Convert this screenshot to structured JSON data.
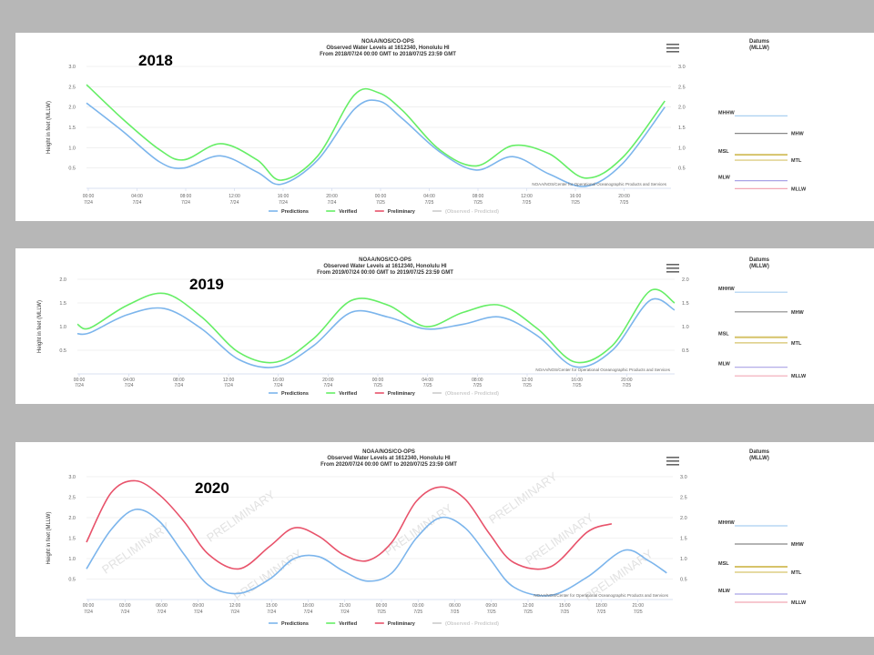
{
  "chart_data": [
    {
      "type": "line",
      "year_label": "2018",
      "title": "NOAA/NOS/CO-OPS",
      "subtitle1": "Observed Water Levels at 1612340, Honolulu HI",
      "subtitle2": "From 2018/07/24 00:00 GMT to 2018/07/25 23:59 GMT",
      "ylabel": "Height in feet (MLLW)",
      "ylim": [
        0,
        3
      ],
      "yticks": [
        "3.0",
        "2.5",
        "2.0",
        "1.5",
        "1.0",
        "0.5"
      ],
      "xlim": [
        0,
        48
      ],
      "x_ticks": [
        {
          "t": "00:00",
          "d": "7/24"
        },
        {
          "t": "04:00",
          "d": "7/24"
        },
        {
          "t": "08:00",
          "d": "7/24"
        },
        {
          "t": "12:00",
          "d": "7/24"
        },
        {
          "t": "16:00",
          "d": "7/24"
        },
        {
          "t": "20:00",
          "d": "7/24"
        },
        {
          "t": "00:00",
          "d": "7/25"
        },
        {
          "t": "04:00",
          "d": "7/25"
        },
        {
          "t": "08:00",
          "d": "7/25"
        },
        {
          "t": "12:00",
          "d": "7/25"
        },
        {
          "t": "16:00",
          "d": "7/25"
        },
        {
          "t": "20:00",
          "d": "7/25"
        }
      ],
      "credit": "NOAA/NOS/Center for Operational Oceanographic Products and Services",
      "series": [
        {
          "name": "Predictions",
          "color": "#7cb5ec",
          "x": [
            0,
            3,
            6,
            8,
            11,
            14,
            16,
            19,
            22,
            24,
            26,
            29,
            32,
            35,
            38,
            41,
            44,
            47.5
          ],
          "values": [
            2.1,
            1.4,
            0.65,
            0.5,
            0.8,
            0.4,
            0.1,
            0.7,
            1.95,
            2.15,
            1.7,
            0.9,
            0.45,
            0.78,
            0.35,
            0.05,
            0.6,
            2.0
          ]
        },
        {
          "name": "Verified",
          "color": "#66ee66",
          "x": [
            0,
            3,
            6,
            8,
            11,
            14,
            16,
            19,
            22,
            24,
            26,
            29,
            32,
            35,
            38,
            41,
            44,
            47.5
          ],
          "values": [
            2.55,
            1.7,
            0.95,
            0.7,
            1.1,
            0.7,
            0.2,
            0.8,
            2.3,
            2.35,
            1.9,
            0.95,
            0.55,
            1.05,
            0.85,
            0.25,
            0.75,
            2.15
          ]
        },
        {
          "name": "Preliminary",
          "color": "#e8536b",
          "x": [],
          "values": []
        },
        {
          "name": "(Observed - Predicted)",
          "color": "#cccccc",
          "x": [],
          "values": []
        }
      ],
      "watermark": ""
    },
    {
      "type": "line",
      "year_label": "2019",
      "title": "NOAA/NOS/CO-OPS",
      "subtitle1": "Observed Water Levels at 1612340, Honolulu HI",
      "subtitle2": "From 2019/07/24 00:00 GMT to 2019/07/25 23:59 GMT",
      "ylabel": "Height in feet (MLLW)",
      "ylim": [
        0,
        2
      ],
      "yticks": [
        "2.0",
        "1.5",
        "1.0",
        "0.5"
      ],
      "xlim": [
        0,
        48
      ],
      "x_ticks": [
        {
          "t": "00:00",
          "d": "7/24"
        },
        {
          "t": "04:00",
          "d": "7/24"
        },
        {
          "t": "08:00",
          "d": "7/24"
        },
        {
          "t": "12:00",
          "d": "7/24"
        },
        {
          "t": "16:00",
          "d": "7/24"
        },
        {
          "t": "20:00",
          "d": "7/24"
        },
        {
          "t": "00:00",
          "d": "7/25"
        },
        {
          "t": "04:00",
          "d": "7/25"
        },
        {
          "t": "08:00",
          "d": "7/25"
        },
        {
          "t": "12:00",
          "d": "7/25"
        },
        {
          "t": "16:00",
          "d": "7/25"
        },
        {
          "t": "20:00",
          "d": "7/25"
        }
      ],
      "credit": "NOAA/NOS/Center for Operational Oceanographic Products and Services",
      "series": [
        {
          "name": "Predictions",
          "color": "#7cb5ec",
          "x": [
            0,
            1,
            4,
            7,
            10,
            13,
            16,
            19,
            22,
            25,
            28,
            31,
            34,
            37,
            40,
            43,
            46,
            48
          ],
          "values": [
            0.85,
            0.87,
            1.25,
            1.38,
            0.95,
            0.3,
            0.15,
            0.6,
            1.3,
            1.2,
            0.95,
            1.05,
            1.2,
            0.8,
            0.15,
            0.5,
            1.55,
            1.35
          ]
        },
        {
          "name": "Verified",
          "color": "#66ee66",
          "x": [
            0,
            1,
            4,
            7,
            10,
            13,
            16,
            19,
            22,
            25,
            28,
            31,
            34,
            37,
            40,
            43,
            46,
            48
          ],
          "values": [
            1.05,
            0.97,
            1.45,
            1.7,
            1.2,
            0.45,
            0.25,
            0.75,
            1.55,
            1.45,
            1.0,
            1.3,
            1.45,
            0.95,
            0.25,
            0.6,
            1.75,
            1.5
          ]
        },
        {
          "name": "Preliminary",
          "color": "#e8536b",
          "x": [],
          "values": []
        },
        {
          "name": "(Observed - Predicted)",
          "color": "#cccccc",
          "x": [],
          "values": []
        }
      ],
      "watermark": ""
    },
    {
      "type": "line",
      "year_label": "2020",
      "title": "NOAA/NOS/CO-OPS",
      "subtitle1": "Observed Water Levels at 1612340, Honolulu HI",
      "subtitle2": "From 2020/07/24 00:00 GMT to 2020/07/25 23:59 GMT",
      "ylabel": "Height in feet (MLLW)",
      "ylim": [
        0,
        3
      ],
      "yticks": [
        "3.0",
        "2.5",
        "2.0",
        "1.5",
        "1.0",
        "0.5"
      ],
      "xlim": [
        0,
        48
      ],
      "x_ticks": [
        {
          "t": "00:00",
          "d": "7/24"
        },
        {
          "t": "03:00",
          "d": "7/24"
        },
        {
          "t": "06:00",
          "d": "7/24"
        },
        {
          "t": "09:00",
          "d": "7/24"
        },
        {
          "t": "12:00",
          "d": "7/24"
        },
        {
          "t": "15:00",
          "d": "7/24"
        },
        {
          "t": "18:00",
          "d": "7/24"
        },
        {
          "t": "21:00",
          "d": "7/24"
        },
        {
          "t": "00:00",
          "d": "7/25"
        },
        {
          "t": "03:00",
          "d": "7/25"
        },
        {
          "t": "06:00",
          "d": "7/25"
        },
        {
          "t": "09:00",
          "d": "7/25"
        },
        {
          "t": "12:00",
          "d": "7/25"
        },
        {
          "t": "15:00",
          "d": "7/25"
        },
        {
          "t": "18:00",
          "d": "7/25"
        },
        {
          "t": "21:00",
          "d": "7/25"
        }
      ],
      "credit": "NOAA/NOS/Center for Operational Oceanographic Products and Services",
      "series": [
        {
          "name": "Predictions",
          "color": "#7cb5ec",
          "x": [
            0,
            2,
            4,
            6,
            8,
            10,
            12.5,
            15,
            17,
            19,
            21,
            23,
            25,
            27,
            29,
            31,
            33,
            35,
            38,
            41,
            44,
            46,
            47.5
          ],
          "values": [
            0.75,
            1.7,
            2.2,
            1.9,
            1.1,
            0.35,
            0.15,
            0.5,
            1.0,
            1.05,
            0.7,
            0.45,
            0.65,
            1.5,
            2.0,
            1.75,
            1.0,
            0.3,
            0.1,
            0.55,
            1.2,
            0.95,
            0.65
          ]
        },
        {
          "name": "Verified",
          "color": "#66ee66",
          "x": [],
          "values": []
        },
        {
          "name": "Preliminary",
          "color": "#e8536b",
          "x": [
            0,
            2,
            4,
            6,
            8,
            10,
            12.5,
            15,
            17,
            19,
            21,
            23,
            25,
            27,
            29,
            31,
            33,
            35,
            38,
            41,
            43
          ],
          "values": [
            1.4,
            2.6,
            2.9,
            2.55,
            1.9,
            1.1,
            0.75,
            1.3,
            1.75,
            1.55,
            1.1,
            0.95,
            1.4,
            2.4,
            2.75,
            2.45,
            1.6,
            0.9,
            0.8,
            1.65,
            1.85
          ]
        },
        {
          "name": "(Observed - Predicted)",
          "color": "#cccccc",
          "x": [],
          "values": []
        }
      ],
      "watermark": "PRELIMINARY"
    }
  ],
  "datums": [
    {
      "title": "Datums",
      "subtitle": "(MLLW)",
      "items": [
        {
          "label": "MHHW",
          "side": "left",
          "color": "#a9cff0",
          "level": 0.12
        },
        {
          "label": "MHW",
          "side": "right",
          "color": "#888888",
          "level": 0.28
        },
        {
          "label": "MSL",
          "side": "left",
          "color": "#d6c36a",
          "level": 0.57
        },
        {
          "label": "MTL",
          "side": "right",
          "color": "#d6c36a",
          "level": 0.59
        },
        {
          "label": "MLW",
          "side": "left",
          "color": "#a9a3e6",
          "level": 0.87
        },
        {
          "label": "MLLW",
          "side": "right",
          "color": "#f2a8b5",
          "level": 0.92
        }
      ]
    },
    {
      "title": "Datums",
      "subtitle": "(MLLW)",
      "items": [
        {
          "label": "MHHW",
          "side": "left",
          "color": "#a9cff0",
          "level": 0.12
        },
        {
          "label": "MHW",
          "side": "right",
          "color": "#888888",
          "level": 0.28
        },
        {
          "label": "MSL",
          "side": "left",
          "color": "#d6c36a",
          "level": 0.57
        },
        {
          "label": "MTL",
          "side": "right",
          "color": "#d6c36a",
          "level": 0.59
        },
        {
          "label": "MLW",
          "side": "left",
          "color": "#a9a3e6",
          "level": 0.87
        },
        {
          "label": "MLLW",
          "side": "right",
          "color": "#f2a8b5",
          "level": 0.92
        }
      ]
    },
    {
      "title": "Datums",
      "subtitle": "(MLLW)",
      "items": [
        {
          "label": "MHHW",
          "side": "left",
          "color": "#a9cff0",
          "level": 0.12
        },
        {
          "label": "MHW",
          "side": "right",
          "color": "#888888",
          "level": 0.28
        },
        {
          "label": "MSL",
          "side": "left",
          "color": "#d6c36a",
          "level": 0.57
        },
        {
          "label": "MTL",
          "side": "right",
          "color": "#d6c36a",
          "level": 0.59
        },
        {
          "label": "MLW",
          "side": "left",
          "color": "#a9a3e6",
          "level": 0.87
        },
        {
          "label": "MLLW",
          "side": "right",
          "color": "#f2a8b5",
          "level": 0.92
        }
      ]
    }
  ]
}
